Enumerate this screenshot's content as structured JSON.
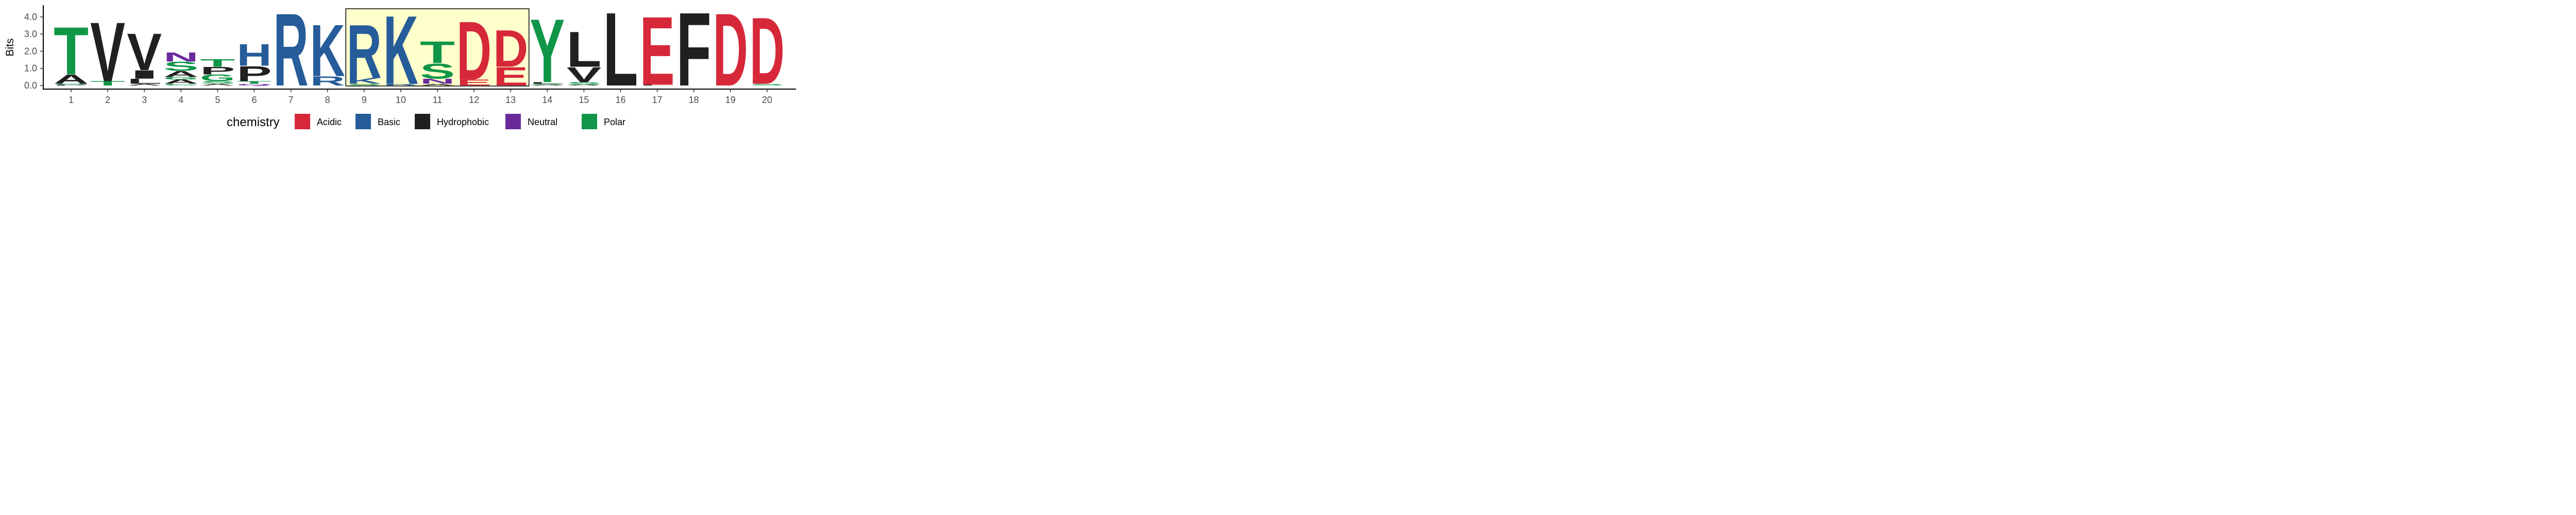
{
  "chart_data": {
    "type": "sequence-logo",
    "ylabel": "Bits",
    "ylim": [
      0,
      4.6
    ],
    "yticks": [
      {
        "value": 0.0,
        "label": "0.0"
      },
      {
        "value": 1.0,
        "label": "1.0"
      },
      {
        "value": 2.0,
        "label": "2.0"
      },
      {
        "value": 3.0,
        "label": "3.0"
      },
      {
        "value": 4.0,
        "label": "4.0"
      }
    ],
    "positions": [
      "1",
      "2",
      "3",
      "4",
      "5",
      "6",
      "7",
      "8",
      "9",
      "10",
      "11",
      "12",
      "13",
      "14",
      "15",
      "16",
      "17",
      "18",
      "19",
      "20"
    ],
    "highlight": {
      "from": 9,
      "to": 13,
      "color": "#FFFFCC"
    },
    "legend": {
      "title": "chemistry",
      "placement": "bottom",
      "items": [
        {
          "name": "Acidic",
          "color": "#D62839"
        },
        {
          "name": "Basic",
          "color": "#255C99"
        },
        {
          "name": "Hydrophobic",
          "color": "#221F20"
        },
        {
          "name": "Neutral",
          "color": "#6A2A9C"
        },
        {
          "name": "Polar",
          "color": "#109648"
        }
      ]
    },
    "stacks": [
      {
        "pos": 1,
        "letters": [
          {
            "aa": "P",
            "bits": 0.05,
            "chem": "Hydrophobic"
          },
          {
            "aa": "S",
            "bits": 0.05,
            "chem": "Polar"
          },
          {
            "aa": "A",
            "bits": 0.55,
            "chem": "Hydrophobic"
          },
          {
            "aa": "T",
            "bits": 2.85,
            "chem": "Polar"
          }
        ]
      },
      {
        "pos": 2,
        "letters": [
          {
            "aa": "T",
            "bits": 0.25,
            "chem": "Polar"
          },
          {
            "aa": "V",
            "bits": 3.55,
            "chem": "Hydrophobic"
          }
        ]
      },
      {
        "pos": 3,
        "letters": [
          {
            "aa": "A",
            "bits": 0.1,
            "chem": "Hydrophobic"
          },
          {
            "aa": "L",
            "bits": 0.3,
            "chem": "Hydrophobic"
          },
          {
            "aa": "I",
            "bits": 0.5,
            "chem": "Hydrophobic"
          },
          {
            "aa": "V",
            "bits": 2.2,
            "chem": "Hydrophobic"
          }
        ]
      },
      {
        "pos": 4,
        "letters": [
          {
            "aa": "C",
            "bits": 0.1,
            "chem": "Polar"
          },
          {
            "aa": "A",
            "bits": 0.25,
            "chem": "Hydrophobic"
          },
          {
            "aa": "G",
            "bits": 0.15,
            "chem": "Polar"
          },
          {
            "aa": "A",
            "bits": 0.35,
            "chem": "Hydrophobic"
          },
          {
            "aa": "S",
            "bits": 0.55,
            "chem": "Polar"
          },
          {
            "aa": "N",
            "bits": 0.55,
            "chem": "Neutral"
          }
        ]
      },
      {
        "pos": 5,
        "letters": [
          {
            "aa": "A",
            "bits": 0.1,
            "chem": "Hydrophobic"
          },
          {
            "aa": "S",
            "bits": 0.15,
            "chem": "Polar"
          },
          {
            "aa": "G",
            "bits": 0.4,
            "chem": "Polar"
          },
          {
            "aa": "P",
            "bits": 0.45,
            "chem": "Hydrophobic"
          },
          {
            "aa": "T",
            "bits": 0.45,
            "chem": "Polar"
          }
        ]
      },
      {
        "pos": 6,
        "letters": [
          {
            "aa": "Q",
            "bits": 0.1,
            "chem": "Neutral"
          },
          {
            "aa": "T",
            "bits": 0.15,
            "chem": "Polar"
          },
          {
            "aa": "P",
            "bits": 0.9,
            "chem": "Hydrophobic"
          },
          {
            "aa": "H",
            "bits": 1.3,
            "chem": "Basic"
          }
        ]
      },
      {
        "pos": 7,
        "letters": [
          {
            "aa": "R",
            "bits": 4.35,
            "chem": "Basic"
          }
        ]
      },
      {
        "pos": 8,
        "letters": [
          {
            "aa": "R",
            "bits": 0.55,
            "chem": "Basic"
          },
          {
            "aa": "K",
            "bits": 3.1,
            "chem": "Basic"
          }
        ]
      },
      {
        "pos": 9,
        "letters": [
          {
            "aa": "S",
            "bits": 0.1,
            "chem": "Polar"
          },
          {
            "aa": "K",
            "bits": 0.35,
            "chem": "Basic"
          },
          {
            "aa": "R",
            "bits": 3.2,
            "chem": "Basic"
          }
        ]
      },
      {
        "pos": 10,
        "letters": [
          {
            "aa": "R",
            "bits": 0.1,
            "chem": "Basic"
          },
          {
            "aa": "K",
            "bits": 4.1,
            "chem": "Basic"
          }
        ]
      },
      {
        "pos": 11,
        "letters": [
          {
            "aa": "A",
            "bits": 0.1,
            "chem": "Hydrophobic"
          },
          {
            "aa": "N",
            "bits": 0.3,
            "chem": "Neutral"
          },
          {
            "aa": "S",
            "bits": 0.9,
            "chem": "Polar"
          },
          {
            "aa": "T",
            "bits": 1.3,
            "chem": "Polar"
          }
        ]
      },
      {
        "pos": 12,
        "letters": [
          {
            "aa": "E",
            "bits": 0.35,
            "chem": "Acidic"
          },
          {
            "aa": "D",
            "bits": 3.5,
            "chem": "Acidic"
          }
        ]
      },
      {
        "pos": 13,
        "letters": [
          {
            "aa": "E",
            "bits": 1.1,
            "chem": "Acidic"
          },
          {
            "aa": "D",
            "bits": 2.2,
            "chem": "Acidic"
          }
        ]
      },
      {
        "pos": 14,
        "letters": [
          {
            "aa": "A",
            "bits": 0.05,
            "chem": "Hydrophobic"
          },
          {
            "aa": "S",
            "bits": 0.05,
            "chem": "Polar"
          },
          {
            "aa": "L",
            "bits": 0.1,
            "chem": "Hydrophobic"
          },
          {
            "aa": "Y",
            "bits": 3.8,
            "chem": "Polar"
          }
        ]
      },
      {
        "pos": 15,
        "letters": [
          {
            "aa": "A",
            "bits": 0.05,
            "chem": "Hydrophobic"
          },
          {
            "aa": "S",
            "bits": 0.15,
            "chem": "Polar"
          },
          {
            "aa": "V",
            "bits": 0.9,
            "chem": "Hydrophobic"
          },
          {
            "aa": "L",
            "bits": 2.1,
            "chem": "Hydrophobic"
          }
        ]
      },
      {
        "pos": 16,
        "letters": [
          {
            "aa": "L",
            "bits": 4.4,
            "chem": "Hydrophobic"
          }
        ]
      },
      {
        "pos": 17,
        "letters": [
          {
            "aa": "L",
            "bits": 0.05,
            "chem": "Hydrophobic"
          },
          {
            "aa": "E",
            "bits": 4.1,
            "chem": "Acidic"
          }
        ]
      },
      {
        "pos": 18,
        "letters": [
          {
            "aa": "F",
            "bits": 4.4,
            "chem": "Hydrophobic"
          }
        ]
      },
      {
        "pos": 19,
        "letters": [
          {
            "aa": "D",
            "bits": 4.35,
            "chem": "Acidic"
          }
        ]
      },
      {
        "pos": 20,
        "letters": [
          {
            "aa": "S",
            "bits": 0.1,
            "chem": "Polar"
          },
          {
            "aa": "D",
            "bits": 4.0,
            "chem": "Acidic"
          }
        ]
      }
    ]
  }
}
